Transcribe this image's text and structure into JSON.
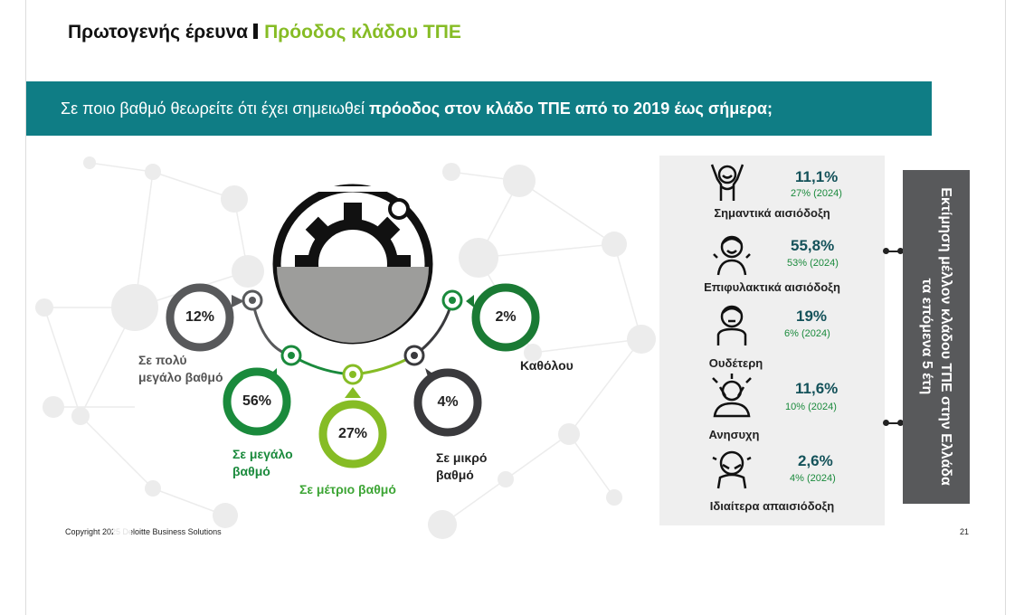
{
  "header": {
    "title": "Πρωτογενής έρευνα",
    "subtitle": "Πρόοδος κλάδου ΤΠΕ"
  },
  "banner": {
    "question_start": "Σε ποιο βαθμό θεωρείτε ότι έχει σημειωθεί ",
    "question_bold": "πρόοδος στον κλάδο ΤΠΕ από το 2019 έως σήμερα;"
  },
  "progress": {
    "items": [
      {
        "key": "very_high",
        "pct": "12%",
        "label_l1": "Σε πολύ",
        "label_l2": "μεγάλο βαθμό",
        "color": "#58595b"
      },
      {
        "key": "high",
        "pct": "56%",
        "label_l1": "Σε μεγάλο",
        "label_l2": "βαθμό",
        "color": "#1a8a3c"
      },
      {
        "key": "medium",
        "pct": "27%",
        "label_l1": "Σε μέτριο βαθμό",
        "label_l2": "",
        "color": "#86bc25"
      },
      {
        "key": "low",
        "pct": "4%",
        "label_l1": "Σε μικρό",
        "label_l2": "βαθμό",
        "color": "#3a3a3d"
      },
      {
        "key": "none",
        "pct": "2%",
        "label_l1": "Καθόλου",
        "label_l2": "",
        "color": "#1a7a34"
      }
    ]
  },
  "outlook": {
    "rows": [
      {
        "value": "11,1%",
        "prev": "27% (2024)",
        "label": "Σημαντικά αισιόδοξη",
        "icon": "cheering-person-icon"
      },
      {
        "value": "55,8%",
        "prev": "53% (2024)",
        "label": "Επιφυλακτικά αισιόδοξη",
        "icon": "smiling-person-icon"
      },
      {
        "value": "19%",
        "prev": "6% (2024)",
        "label": "Ουδέτερη",
        "icon": "neutral-person-icon"
      },
      {
        "value": "11,6%",
        "prev": "10% (2024)",
        "label": "Ανησυχη",
        "icon": "worried-person-icon"
      },
      {
        "value": "2,6%",
        "prev": "4% (2024)",
        "label": "Ιδιαίτερα απαισιόδοξη",
        "icon": "crying-person-icon"
      }
    ],
    "side_title": "Εκτίμηση μέλλον κλάδου ΤΠΕ στην Ελλάδα τα επόμενα 5 έτη"
  },
  "footer": {
    "copyright": "Copyright 2025 Deloitte Business Solutions",
    "page_number": "21"
  },
  "colors": {
    "teal": "#0f7d85",
    "green_dark": "#1a8a3c",
    "green_light": "#86bc25",
    "gray_dark": "#58595b"
  }
}
